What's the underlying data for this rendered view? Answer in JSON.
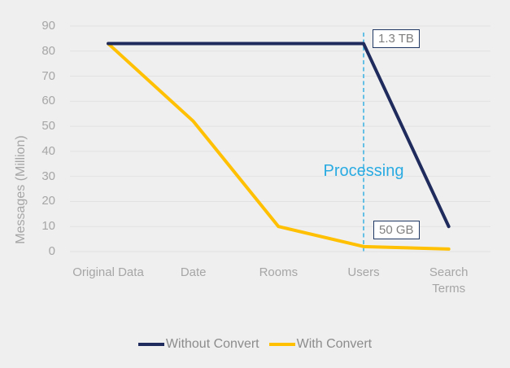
{
  "colors": {
    "background": "#efefef",
    "gridline": "#e2e2e2",
    "axis_text": "#a6a6a6",
    "legend_text": "#8c8c8c",
    "annotation_text": "#7f7f7f",
    "annotation_border": "#1f3864",
    "without_convert": "#1f2b5c",
    "with_convert": "#ffc000",
    "processing": "#29abe2"
  },
  "chart_data": {
    "type": "line",
    "categories": [
      "Original Data",
      "Date",
      "Rooms",
      "Users",
      "Search Terms"
    ],
    "series": [
      {
        "name": "Without Convert",
        "color_key": "without_convert",
        "values": [
          83,
          83,
          83,
          83,
          10
        ]
      },
      {
        "name": "With Convert",
        "color_key": "with_convert",
        "values": [
          83,
          52,
          10,
          2,
          1
        ]
      }
    ],
    "xlabel": "",
    "ylabel": "Messages (Million)",
    "ylim": [
      0,
      90
    ],
    "yticks": [
      0,
      10,
      20,
      30,
      40,
      50,
      60,
      70,
      80,
      90
    ],
    "grid": "horizontal",
    "legend_position": "bottom",
    "annotations": {
      "top_box": "1.3 TB",
      "bottom_box": "50 GB",
      "processing_label": "Processing",
      "vline_category": "Users"
    }
  }
}
